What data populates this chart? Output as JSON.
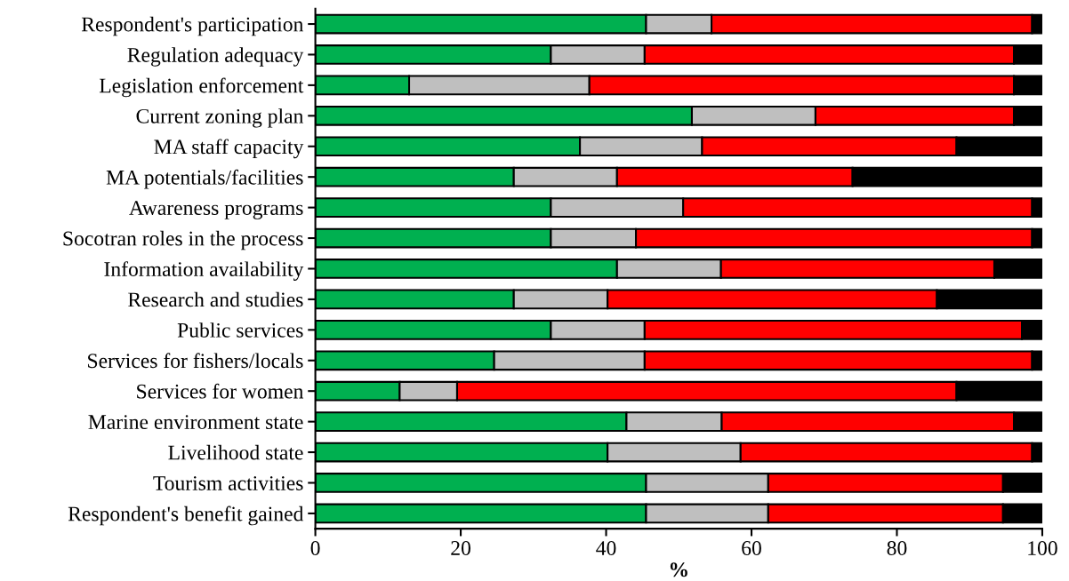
{
  "chart_data": {
    "type": "bar",
    "orientation": "horizontal",
    "stacked": true,
    "xlabel": "%",
    "categories": [
      "Respondent's participation",
      "Regulation adequacy",
      "Legislation enforcement",
      "Current zoning plan",
      "MA staff capacity",
      "MA potentials/facilities",
      "Awareness programs",
      "Socotran roles in the process",
      "Information availability",
      "Research and studies",
      "Public services",
      "Services for fishers/locals",
      "Services for women",
      "Marine environment state",
      "Livelihood state",
      "Tourism activities",
      "Respondent's benefit gained"
    ],
    "series": [
      {
        "color": "#00b050",
        "values": [
          45.5,
          32.4,
          12.9,
          51.8,
          36.4,
          27.3,
          32.4,
          32.4,
          41.5,
          27.3,
          32.4,
          24.6,
          11.6,
          42.8,
          40.2,
          45.5,
          45.5
        ]
      },
      {
        "color": "#bfbfbf",
        "values": [
          9.0,
          12.9,
          24.8,
          17.0,
          16.8,
          14.2,
          18.2,
          11.7,
          14.3,
          12.9,
          12.9,
          20.7,
          7.9,
          13.1,
          18.3,
          16.8,
          16.8
        ]
      },
      {
        "color": "#ff0000",
        "values": [
          44.1,
          50.8,
          58.4,
          27.3,
          35.0,
          32.4,
          48.0,
          54.5,
          37.6,
          45.3,
          51.9,
          53.3,
          68.7,
          40.2,
          40.1,
          32.3,
          32.3
        ]
      },
      {
        "color": "#000000",
        "values": [
          1.4,
          3.9,
          3.9,
          3.9,
          11.8,
          26.1,
          1.4,
          1.4,
          6.6,
          14.5,
          2.8,
          1.4,
          11.8,
          3.9,
          1.4,
          5.4,
          5.4
        ]
      }
    ],
    "xlim": [
      0,
      100
    ],
    "xticks": [
      0,
      20,
      40,
      60,
      80,
      100
    ],
    "grid": false,
    "legend": false
  }
}
